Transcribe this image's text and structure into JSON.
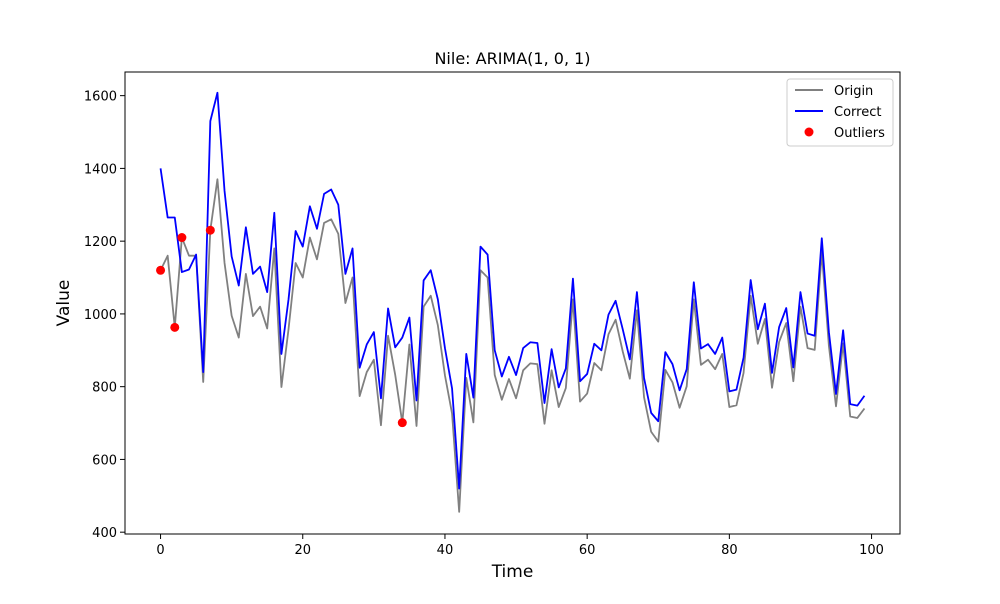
{
  "chart_data": {
    "type": "line",
    "title": "Nile: ARIMA(1, 0, 1)",
    "xlabel": "Time",
    "ylabel": "Value",
    "xlim": [
      -5,
      104
    ],
    "ylim": [
      395,
      1665
    ],
    "xticks": [
      0,
      20,
      40,
      60,
      80,
      100
    ],
    "yticks": [
      400,
      600,
      800,
      1000,
      1200,
      1400,
      1600
    ],
    "grid": false,
    "legend_position": "top-right",
    "series": [
      {
        "name": "Origin",
        "kind": "line",
        "color": "#808080",
        "x": [
          0,
          1,
          2,
          3,
          4,
          5,
          6,
          7,
          8,
          9,
          10,
          11,
          12,
          13,
          14,
          15,
          16,
          17,
          18,
          19,
          20,
          21,
          22,
          23,
          24,
          25,
          26,
          27,
          28,
          29,
          30,
          31,
          32,
          33,
          34,
          35,
          36,
          37,
          38,
          39,
          40,
          41,
          42,
          43,
          44,
          45,
          46,
          47,
          48,
          49,
          50,
          51,
          52,
          53,
          54,
          55,
          56,
          57,
          58,
          59,
          60,
          61,
          62,
          63,
          64,
          65,
          66,
          67,
          68,
          69,
          70,
          71,
          72,
          73,
          74,
          75,
          76,
          77,
          78,
          79,
          80,
          81,
          82,
          83,
          84,
          85,
          86,
          87,
          88,
          89,
          90,
          91,
          92,
          93,
          94,
          95,
          96,
          97,
          98,
          99
        ],
        "values": [
          1120,
          1160,
          963,
          1210,
          1160,
          1160,
          813,
          1230,
          1370,
          1140,
          995,
          935,
          1110,
          994,
          1020,
          960,
          1180,
          799,
          958,
          1140,
          1100,
          1210,
          1150,
          1250,
          1260,
          1220,
          1030,
          1100,
          774,
          840,
          874,
          694,
          940,
          833,
          701,
          916,
          692,
          1020,
          1050,
          969,
          831,
          726,
          456,
          824,
          702,
          1120,
          1100,
          832,
          764,
          821,
          768,
          845,
          864,
          862,
          698,
          845,
          744,
          796,
          1040,
          759,
          781,
          865,
          845,
          944,
          984,
          897,
          822,
          1010,
          771,
          676,
          649,
          846,
          812,
          742,
          801,
          1040,
          860,
          874,
          848,
          890,
          744,
          749,
          838,
          1050,
          918,
          986,
          797,
          923,
          975,
          815,
          1020,
          906,
          901,
          1170,
          912,
          746,
          919,
          718,
          714,
          740
        ]
      },
      {
        "name": "Correct",
        "kind": "line",
        "color": "#0000ff",
        "x": [
          0,
          1,
          2,
          3,
          4,
          5,
          6,
          7,
          8,
          9,
          10,
          11,
          12,
          13,
          14,
          15,
          16,
          17,
          18,
          19,
          20,
          21,
          22,
          23,
          24,
          25,
          26,
          27,
          28,
          29,
          30,
          31,
          32,
          33,
          34,
          35,
          36,
          37,
          38,
          39,
          40,
          41,
          42,
          43,
          44,
          45,
          46,
          47,
          48,
          49,
          50,
          51,
          52,
          53,
          54,
          55,
          56,
          57,
          58,
          59,
          60,
          61,
          62,
          63,
          64,
          65,
          66,
          67,
          68,
          69,
          70,
          71,
          72,
          73,
          74,
          75,
          76,
          77,
          78,
          79,
          80,
          81,
          82,
          83,
          84,
          85,
          86,
          87,
          88,
          89,
          90,
          91,
          92,
          93,
          94,
          95,
          96,
          97,
          98,
          99
        ],
        "values": [
          1400,
          1265,
          1265,
          1115,
          1122,
          1163,
          840,
          1530,
          1608,
          1338,
          1158,
          1078,
          1238,
          1110,
          1130,
          1060,
          1278,
          890,
          1040,
          1228,
          1185,
          1296,
          1234,
          1330,
          1342,
          1300,
          1110,
          1180,
          852,
          916,
          950,
          768,
          1015,
          908,
          935,
          990,
          762,
          1092,
          1120,
          1040,
          906,
          795,
          520,
          890,
          770,
          1185,
          1163,
          900,
          828,
          882,
          832,
          906,
          922,
          920,
          755,
          903,
          798,
          850,
          1097,
          815,
          835,
          918,
          900,
          998,
          1036,
          958,
          875,
          1060,
          824,
          728,
          705,
          895,
          862,
          790,
          848,
          1087,
          905,
          917,
          890,
          935,
          787,
          792,
          880,
          1093,
          958,
          1028,
          838,
          964,
          1016,
          853,
          1060,
          946,
          940,
          1208,
          950,
          780,
          955,
          752,
          748,
          775
        ]
      },
      {
        "name": "Outliers",
        "kind": "scatter",
        "color": "#ff0000",
        "x": [
          0,
          2,
          3,
          7,
          34
        ],
        "values": [
          1120,
          963,
          1210,
          1230,
          701
        ]
      }
    ]
  }
}
